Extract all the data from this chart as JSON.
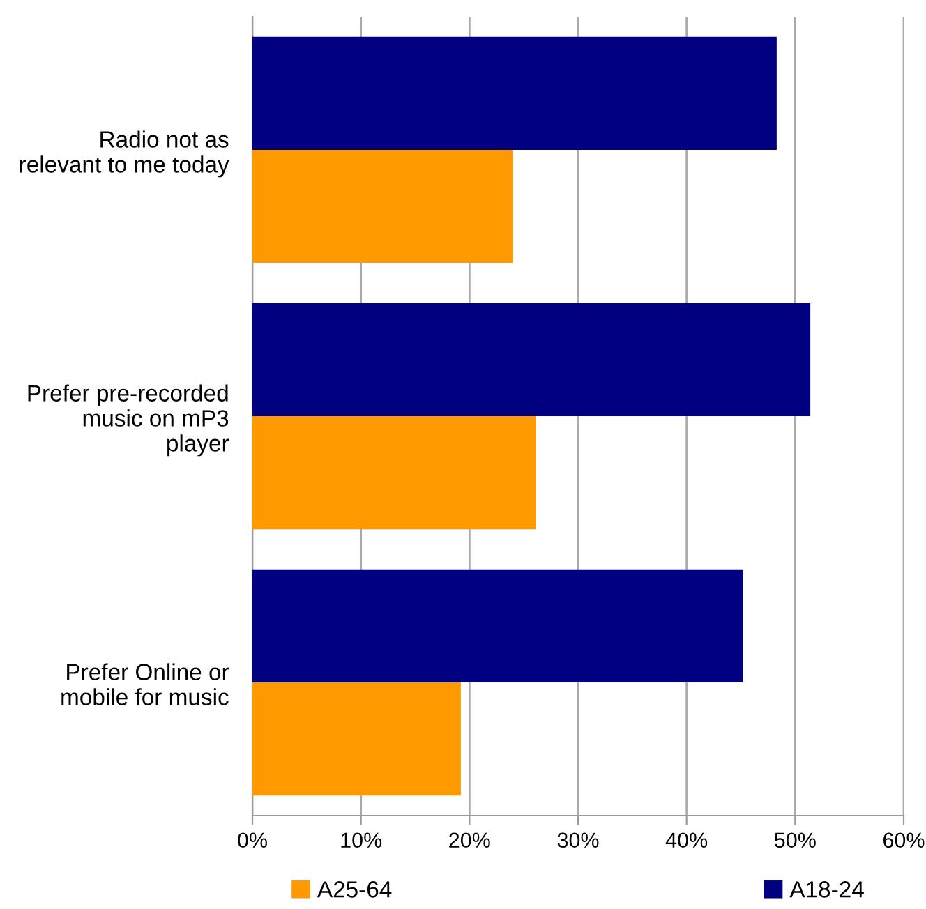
{
  "chart_data": {
    "type": "bar",
    "orientation": "horizontal",
    "categories": [
      "Radio not as\nrelevant to me today",
      "Prefer pre-recorded\nmusic on mP3\nplayer",
      "Prefer Online or\nmobile for music"
    ],
    "series": [
      {
        "name": "A25-64",
        "color": "#ff9900",
        "values": [
          24.0,
          26.1,
          19.2
        ]
      },
      {
        "name": "A18-24",
        "color": "#000080",
        "values": [
          48.3,
          51.4,
          45.2
        ]
      }
    ],
    "xlim": [
      0,
      60
    ],
    "xticks": [
      {
        "value": 0,
        "label": "0%"
      },
      {
        "value": 10,
        "label": "10%"
      },
      {
        "value": 20,
        "label": "20%"
      },
      {
        "value": 30,
        "label": "30%"
      },
      {
        "value": 40,
        "label": "40%"
      },
      {
        "value": 50,
        "label": "50%"
      },
      {
        "value": 60,
        "label": "60%"
      }
    ],
    "grid": "x",
    "legend": "bottom"
  }
}
